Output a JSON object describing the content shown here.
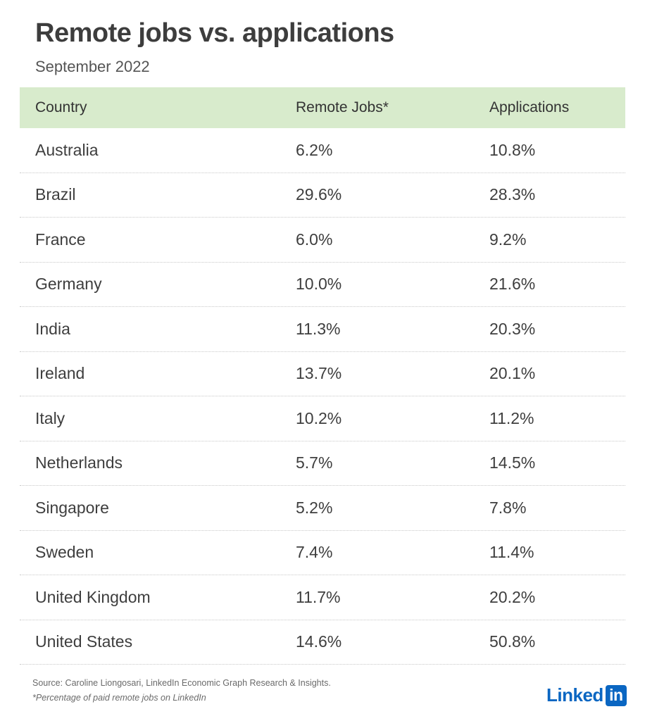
{
  "title": "Remote jobs vs. applications",
  "subtitle": "September 2022",
  "chart_data": {
    "type": "table",
    "title": "Remote jobs vs. applications",
    "subtitle": "September 2022",
    "columns": [
      "Country",
      "Remote Jobs*",
      "Applications"
    ],
    "rows": [
      {
        "country": "Australia",
        "remote_jobs": "6.2%",
        "applications": "10.8%"
      },
      {
        "country": "Brazil",
        "remote_jobs": "29.6%",
        "applications": "28.3%"
      },
      {
        "country": "France",
        "remote_jobs": "6.0%",
        "applications": "9.2%"
      },
      {
        "country": "Germany",
        "remote_jobs": "10.0%",
        "applications": "21.6%"
      },
      {
        "country": "India",
        "remote_jobs": "11.3%",
        "applications": "20.3%"
      },
      {
        "country": "Ireland",
        "remote_jobs": "13.7%",
        "applications": "20.1%"
      },
      {
        "country": "Italy",
        "remote_jobs": "10.2%",
        "applications": "11.2%"
      },
      {
        "country": "Netherlands",
        "remote_jobs": "5.7%",
        "applications": "14.5%"
      },
      {
        "country": "Singapore",
        "remote_jobs": "5.2%",
        "applications": "7.8%"
      },
      {
        "country": "Sweden",
        "remote_jobs": "7.4%",
        "applications": "11.4%"
      },
      {
        "country": "United Kingdom",
        "remote_jobs": "11.7%",
        "applications": "20.2%"
      },
      {
        "country": "United States",
        "remote_jobs": "14.6%",
        "applications": "50.8%"
      }
    ],
    "header_color": "#d8ebcc"
  },
  "source": "Source: Caroline Liongosari, LinkedIn Economic Graph Research & Insights.",
  "footnote": "*Percentage of paid remote jobs on LinkedIn",
  "logo": {
    "text": "Linked",
    "box_text": "in",
    "color": "#0a66c2"
  }
}
